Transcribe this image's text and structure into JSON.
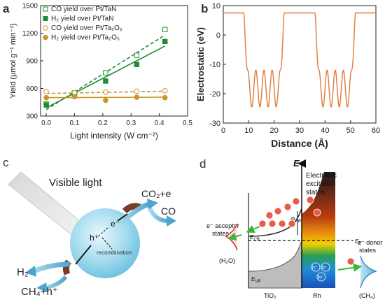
{
  "panels": {
    "a": {
      "letter": "a"
    },
    "b": {
      "letter": "b"
    },
    "c": {
      "letter": "c"
    },
    "d": {
      "letter": "d"
    }
  },
  "chart_data": [
    {
      "type": "scatter",
      "panel": "a",
      "xlabel": "Light intensity (W cm⁻²)",
      "ylabel": "Yield (μmol g⁻¹ min⁻¹)",
      "xlim": [
        -0.02,
        0.5
      ],
      "ylim": [
        300,
        1500
      ],
      "xticks": [
        0.0,
        0.1,
        0.2,
        0.3,
        0.4,
        0.5
      ],
      "yticks": [
        300,
        600,
        900,
        1200,
        1500
      ],
      "legend_position": "top-left",
      "series": [
        {
          "name": "CO yield over Pt/TaN",
          "marker": "open-square",
          "color": "#1e8c32",
          "x": [
            0.0,
            0.1,
            0.21,
            0.32,
            0.42
          ],
          "y": [
            430,
            545,
            770,
            960,
            1240
          ],
          "fit": {
            "style": "dashed",
            "x": [
              0.0,
              0.42
            ],
            "y": [
              370,
              1180
            ]
          }
        },
        {
          "name": "H₂ yield over Pt/TaN",
          "marker": "filled-square",
          "color": "#1e8c32",
          "x": [
            0.0,
            0.1,
            0.21,
            0.32,
            0.42
          ],
          "y": [
            420,
            550,
            680,
            860,
            1110
          ],
          "fit": {
            "style": "solid",
            "x": [
              0.0,
              0.42
            ],
            "y": [
              390,
              1060
            ]
          }
        },
        {
          "name": "CO yield over Pt/Ta₂O₅",
          "marker": "open-circle",
          "color": "#c8962a",
          "x": [
            0.0,
            0.1,
            0.21,
            0.32,
            0.42
          ],
          "y": [
            565,
            555,
            560,
            570,
            575
          ],
          "fit": {
            "style": "dashed",
            "x": [
              0.0,
              0.42
            ],
            "y": [
              545,
              570
            ]
          }
        },
        {
          "name": "H₂ yield over Pt/Ta₂O₅",
          "marker": "filled-circle",
          "color": "#c8962a",
          "x": [
            0.0,
            0.1,
            0.21,
            0.32,
            0.42
          ],
          "y": [
            500,
            510,
            470,
            505,
            500
          ],
          "fit": {
            "style": "solid",
            "x": [
              0.0,
              0.42
            ],
            "y": [
              500,
              505
            ]
          }
        }
      ]
    },
    {
      "type": "line",
      "panel": "b",
      "xlabel": "Distance (Å)",
      "ylabel": "Electrostatic (eV)",
      "xlim": [
        0,
        60
      ],
      "ylim": [
        -30,
        10
      ],
      "xticks": [
        0,
        10,
        20,
        30,
        40,
        50,
        60
      ],
      "yticks": [
        -30,
        -20,
        -10,
        0,
        10
      ],
      "series": [
        {
          "color": "#e07a3a",
          "plateau_level": 7.5,
          "well_regions": [
            [
              8,
              24
            ],
            [
              36,
              52
            ]
          ],
          "oscillation_min": -24.5,
          "oscillation_max": -12,
          "oscillations_per_region": 5
        }
      ]
    }
  ],
  "diagram_c": {
    "visible_light": "Visible light",
    "electron": "e⁻",
    "hole": "h⁺",
    "recombination": "recombination",
    "co2_e": "CO₂+e",
    "co": "CO",
    "h2": "H₂",
    "ch4_h": "CH₄+h⁺"
  },
  "diagram_d": {
    "e_axis": "E",
    "excitation_1": "Electronic",
    "excitation_2": "excitation",
    "excitation_3": "states",
    "acceptor_1": "e⁻ acceptor",
    "acceptor_2": "states",
    "h2o": "(H₂O)",
    "ecb": "E",
    "ecb_sub": "CB",
    "evb": "E",
    "evb_sub": "VB",
    "ef": "E",
    "ef_sub": "F",
    "phi": "Φ",
    "phi_sub": "SB",
    "donor_1": "e⁻ donor",
    "donor_2": "states",
    "ch4": "(CH₄)",
    "tio2": "TiO₂",
    "rh": "Rh",
    "e_label": "e⁻",
    "h_label": "h⁺"
  }
}
